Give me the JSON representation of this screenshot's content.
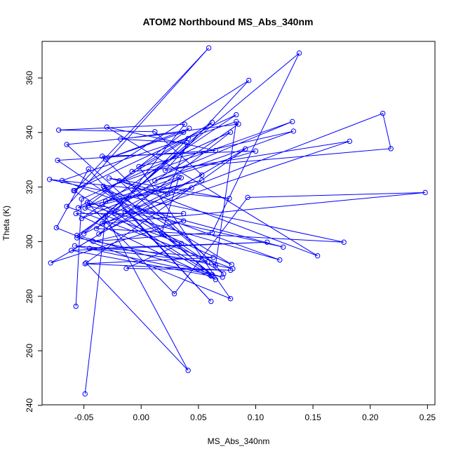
{
  "chart_data": {
    "type": "line",
    "title": "ATOM2 Northbound MS_Abs_340nm",
    "xlabel": "MS_Abs_340nm",
    "ylabel": "Theta (K)",
    "xlim": [
      -0.0865,
      0.2565
    ],
    "ylim": [
      240.2,
      373.4
    ],
    "xticks": [
      -0.05,
      0.0,
      0.05,
      0.1,
      0.15,
      0.2,
      0.25
    ],
    "xtick_labels": [
      "-0.05",
      "0.00",
      "0.05",
      "0.10",
      "0.15",
      "0.20",
      "0.25"
    ],
    "yticks": [
      240,
      260,
      280,
      300,
      320,
      340,
      360
    ],
    "ytick_labels": [
      "240",
      "260",
      "280",
      "300",
      "320",
      "340",
      "360"
    ],
    "grid": false,
    "line_color": "#0000ff",
    "marker": "open-circle",
    "series": [
      {
        "points": [
          [
            -0.049,
            244.2
          ],
          [
            -0.031,
            309.3
          ],
          [
            0.041,
            252.8
          ],
          [
            -0.048,
            292.2
          ],
          [
            0.091,
            334.0
          ],
          [
            -0.079,
            292.2
          ],
          [
            0.037,
            307.6
          ],
          [
            -0.042,
            300.1
          ],
          [
            0.062,
            303.3
          ],
          [
            0.138,
            369.1
          ],
          [
            -0.056,
            301.4
          ],
          [
            0.08,
            290.1
          ],
          [
            -0.065,
            312.9
          ],
          [
            0.059,
            371.0
          ],
          [
            -0.058,
            318.7
          ],
          [
            0.094,
            359.1
          ],
          [
            0.021,
            326.1
          ],
          [
            0.182,
            336.8
          ],
          [
            -0.034,
            306.6
          ],
          [
            0.248,
            318.0
          ],
          [
            0.093,
            316.2
          ],
          [
            0.029,
            280.9
          ],
          [
            -0.047,
            314.3
          ],
          [
            0.124,
            298.0
          ],
          [
            -0.003,
            312.4
          ],
          [
            0.211,
            347.0
          ],
          [
            0.218,
            334.1
          ],
          [
            -0.008,
            325.7
          ],
          [
            0.062,
            343.7
          ],
          [
            -0.05,
            302.9
          ],
          [
            0.053,
            324.4
          ],
          [
            0.012,
            340.3
          ],
          [
            -0.072,
            340.9
          ],
          [
            0.038,
            343.0
          ],
          [
            -0.023,
            310.5
          ],
          [
            0.035,
            323.4
          ],
          [
            -0.052,
            308.5
          ],
          [
            0.083,
            346.5
          ],
          [
            -0.059,
            318.7
          ],
          [
            0.061,
            287.4
          ],
          [
            -0.061,
            296.8
          ],
          [
            0.11,
            299.8
          ],
          [
            -0.045,
            297.5
          ],
          [
            0.058,
            292.5
          ],
          [
            -0.073,
            329.8
          ],
          [
            0.065,
            333.4
          ],
          [
            -0.03,
            342.0
          ],
          [
            0.154,
            294.8
          ],
          [
            -0.019,
            322.3
          ],
          [
            0.065,
            291.4
          ],
          [
            0.083,
            344.0
          ],
          [
            -0.069,
            322.4
          ],
          [
            0.121,
            293.3
          ],
          [
            -0.046,
            313.2
          ],
          [
            0.132,
            344.0
          ],
          [
            -0.032,
            319.6
          ],
          [
            0.061,
            278.1
          ],
          [
            -0.046,
            326.6
          ],
          [
            -0.074,
            305.1
          ],
          [
            0.078,
            279.1
          ],
          [
            -0.002,
            327.5
          ],
          [
            0.133,
            340.5
          ],
          [
            0.012,
            322.3
          ],
          [
            0.1,
            333.2
          ],
          [
            -0.034,
            331.3
          ],
          [
            0.072,
            288.2
          ],
          [
            -0.014,
            311.0
          ],
          [
            0.037,
            310.3
          ],
          [
            -0.057,
            310.3
          ],
          [
            0.065,
            286.1
          ],
          [
            -0.065,
            335.6
          ],
          [
            0.037,
            340.1
          ],
          [
            -0.031,
            330.2
          ],
          [
            0.042,
            341.5
          ],
          [
            -0.049,
            312.3
          ],
          [
            0.035,
            299.3
          ],
          [
            -0.013,
            290.2
          ],
          [
            0.078,
            289.5
          ],
          [
            -0.049,
            291.9
          ],
          [
            0.063,
            294.2
          ],
          [
            -0.058,
            298.5
          ],
          [
            0.071,
            287.0
          ],
          [
            -0.056,
            302.3
          ],
          [
            0.085,
            343.1
          ],
          [
            -0.018,
            337.6
          ],
          [
            0.04,
            336.2
          ],
          [
            0.023,
            317.5
          ],
          [
            -0.028,
            323.3
          ],
          [
            0.077,
            315.8
          ],
          [
            -0.08,
            322.8
          ],
          [
            0.177,
            299.8
          ],
          [
            -0.039,
            304.8
          ],
          [
            0.041,
            337.8
          ],
          [
            -0.055,
            312.4
          ],
          [
            0.053,
            322.5
          ],
          [
            -0.034,
            313.6
          ],
          [
            0.062,
            287.9
          ],
          [
            -0.033,
            320.3
          ],
          [
            0.079,
            291.6
          ],
          [
            0.018,
            303.1
          ],
          [
            0.033,
            323.6
          ],
          [
            -0.031,
            314.8
          ],
          [
            0.044,
            319.7
          ],
          [
            -0.037,
            302.8
          ],
          [
            0.078,
            340.1
          ],
          [
            -0.052,
            315.6
          ],
          [
            -0.057,
            276.3
          ]
        ]
      }
    ]
  }
}
